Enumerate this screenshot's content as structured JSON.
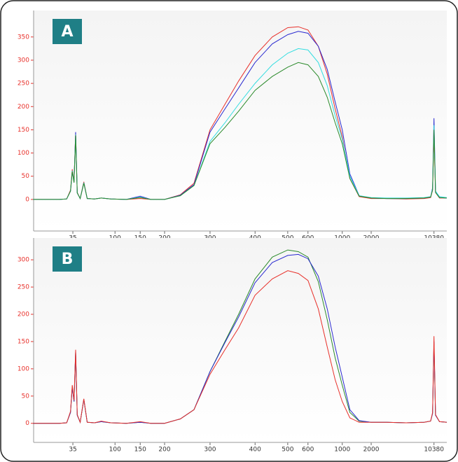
{
  "chart_data": [
    {
      "type": "line",
      "title": "A",
      "x": [
        13,
        25,
        30,
        33,
        34.5,
        36,
        37.5,
        39,
        42,
        46,
        50,
        60,
        71,
        90,
        120,
        150,
        170,
        200,
        230,
        260,
        300,
        330,
        360,
        400,
        450,
        500,
        550,
        600,
        700,
        800,
        900,
        1000,
        1200,
        1500,
        2000,
        3000,
        5000,
        8000,
        9500,
        10000,
        10380,
        10800,
        12000,
        14500
      ],
      "series": [
        {
          "name": "red",
          "color": "#e8302a",
          "values": [
            0,
            0,
            1,
            20,
            65,
            40,
            143,
            15,
            2,
            38,
            2,
            1,
            3,
            1,
            0,
            2,
            0,
            0,
            10,
            35,
            150,
            205,
            255,
            310,
            350,
            370,
            372,
            365,
            330,
            270,
            195,
            135,
            45,
            6,
            2,
            2,
            1,
            2,
            4,
            20,
            140,
            15,
            3,
            3
          ]
        },
        {
          "name": "blue",
          "color": "#2a2ad0",
          "values": [
            0,
            0,
            1,
            18,
            60,
            38,
            145,
            14,
            2,
            36,
            2,
            1,
            3,
            1,
            0,
            7,
            0,
            0,
            9,
            32,
            145,
            195,
            240,
            295,
            335,
            355,
            362,
            358,
            330,
            280,
            210,
            150,
            55,
            8,
            3,
            2,
            2,
            3,
            5,
            25,
            175,
            18,
            4,
            3
          ]
        },
        {
          "name": "cyan",
          "color": "#33dde0",
          "values": [
            0,
            0,
            1,
            18,
            62,
            38,
            140,
            14,
            2,
            36,
            2,
            1,
            3,
            1,
            0,
            5,
            0,
            0,
            8,
            30,
            125,
            165,
            205,
            250,
            290,
            315,
            325,
            322,
            295,
            245,
            180,
            130,
            50,
            8,
            4,
            3,
            3,
            4,
            6,
            22,
            160,
            18,
            6,
            4
          ]
        },
        {
          "name": "green",
          "color": "#2a8a2a",
          "values": [
            0,
            0,
            1,
            18,
            60,
            36,
            138,
            14,
            2,
            35,
            2,
            1,
            3,
            1,
            0,
            4,
            0,
            0,
            8,
            30,
            120,
            155,
            190,
            235,
            265,
            285,
            295,
            290,
            265,
            220,
            165,
            120,
            45,
            7,
            3,
            2,
            2,
            3,
            5,
            20,
            150,
            15,
            4,
            3
          ]
        }
      ],
      "xticks": [
        35,
        100,
        150,
        200,
        300,
        400,
        500,
        600,
        1000,
        2000,
        10380
      ],
      "ylim": [
        -68,
        407
      ],
      "yticks": [
        0,
        50,
        100,
        150,
        200,
        250,
        300,
        350
      ]
    },
    {
      "type": "line",
      "title": "B",
      "x": [
        13,
        25,
        30,
        33,
        34.5,
        36,
        37.5,
        39,
        42,
        46,
        50,
        60,
        71,
        90,
        120,
        150,
        170,
        200,
        230,
        260,
        300,
        330,
        360,
        400,
        450,
        500,
        550,
        600,
        700,
        800,
        900,
        1000,
        1200,
        1500,
        2000,
        3000,
        5000,
        8000,
        9500,
        10000,
        10380,
        10800,
        12000,
        14500
      ],
      "series": [
        {
          "name": "green",
          "color": "#2a8a2a",
          "values": [
            0,
            0,
            1,
            20,
            68,
            40,
            130,
            15,
            2,
            44,
            2,
            1,
            3,
            1,
            0,
            2,
            0,
            0,
            8,
            25,
            95,
            150,
            200,
            265,
            305,
            318,
            315,
            305,
            260,
            190,
            120,
            70,
            20,
            4,
            2,
            2,
            1,
            2,
            4,
            18,
            145,
            15,
            3,
            2
          ]
        },
        {
          "name": "blue",
          "color": "#2a2ad0",
          "values": [
            0,
            0,
            1,
            20,
            66,
            40,
            132,
            15,
            2,
            44,
            2,
            1,
            3,
            1,
            0,
            2,
            0,
            0,
            8,
            25,
            95,
            148,
            195,
            258,
            295,
            308,
            310,
            302,
            270,
            210,
            140,
            85,
            25,
            5,
            2,
            2,
            1,
            2,
            4,
            18,
            150,
            15,
            3,
            2
          ]
        },
        {
          "name": "red",
          "color": "#e8302a",
          "values": [
            0,
            0,
            1,
            22,
            70,
            42,
            135,
            16,
            2,
            45,
            2,
            1,
            4,
            1,
            0,
            3,
            0,
            0,
            8,
            25,
            90,
            135,
            175,
            235,
            265,
            280,
            275,
            262,
            210,
            140,
            80,
            40,
            10,
            2,
            2,
            2,
            1,
            2,
            4,
            20,
            160,
            16,
            3,
            2
          ]
        }
      ],
      "xticks": [
        35,
        100,
        150,
        200,
        300,
        400,
        500,
        600,
        1000,
        2000,
        10380
      ],
      "ylim": [
        -35,
        340
      ],
      "yticks": [
        0,
        50,
        100,
        150,
        200,
        250,
        300
      ]
    }
  ]
}
